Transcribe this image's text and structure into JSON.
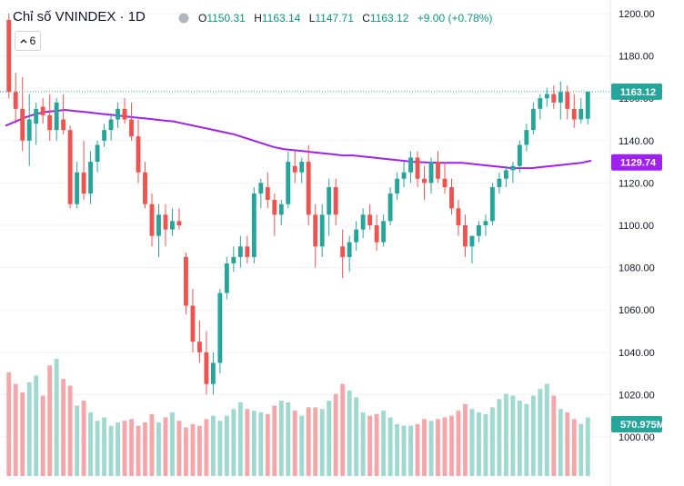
{
  "header": {
    "symbol_title": "Chỉ số VNINDEX · 1D",
    "ohlc": {
      "o_key": "O",
      "o_val": "1150.31",
      "h_key": "H",
      "h_val": "1163.14",
      "l_key": "L",
      "l_val": "1147.71",
      "c_key": "C",
      "c_val": "1163.12",
      "change": "+9.00 (+0.78%)"
    }
  },
  "indicator_toggle": {
    "count": "6",
    "icon": "chevron-up-icon"
  },
  "hide_icon": "eye-slash-icon",
  "colors": {
    "up": "#26a69a",
    "down": "#ef5350",
    "vol_up": "#9fd9cf",
    "vol_down": "#f5a6a9",
    "ma": "#a020f0",
    "price_tag": "#26a69a"
  },
  "price_tag": "1163.12",
  "ma_tag": "1129.74",
  "volume_tag": "570.975M",
  "chart_data": {
    "type": "candlestick",
    "y_ticks": [
      "1000.00",
      "1020.00",
      "1040.00",
      "1060.00",
      "1080.00",
      "1100.00",
      "1120.00",
      "1140.00",
      "1160.00",
      "1180.00",
      "1200.00"
    ],
    "ylim": [
      995,
      1202
    ],
    "ma_values": [
      1147,
      1149,
      1151,
      1152.5,
      1153.5,
      1154,
      1154.5,
      1154,
      1153.5,
      1153,
      1152.5,
      1152,
      1151.5,
      1151,
      1150.5,
      1150,
      1149.5,
      1149,
      1148,
      1147,
      1146,
      1145,
      1144,
      1143,
      1141.5,
      1140,
      1138.5,
      1137,
      1136,
      1135.5,
      1135,
      1134.5,
      1134,
      1133.5,
      1133,
      1133,
      1132.5,
      1132,
      1131.5,
      1131,
      1130.5,
      1130,
      1129.8,
      1129.6,
      1129.5,
      1129.5,
      1129.5,
      1129,
      1128.5,
      1128,
      1127.5,
      1127,
      1127,
      1127,
      1127.5,
      1128,
      1128.5,
      1129,
      1129.5,
      1130.5
    ],
    "candles": [
      [
        1197,
        1200,
        1160,
        1163
      ],
      [
        1163,
        1172,
        1148,
        1155
      ],
      [
        1155,
        1170,
        1135,
        1140
      ],
      [
        1140,
        1162,
        1128,
        1150
      ],
      [
        1148,
        1158,
        1138,
        1155
      ],
      [
        1156,
        1160,
        1148,
        1152
      ],
      [
        1152,
        1162,
        1140,
        1145
      ],
      [
        1145,
        1160,
        1140,
        1158
      ],
      [
        1150,
        1162,
        1143,
        1145
      ],
      [
        1145,
        1147,
        1108,
        1110
      ],
      [
        1110,
        1130,
        1108,
        1125
      ],
      [
        1125,
        1140,
        1112,
        1115
      ],
      [
        1115,
        1135,
        1110,
        1130
      ],
      [
        1130,
        1140,
        1125,
        1138
      ],
      [
        1140,
        1148,
        1137,
        1145
      ],
      [
        1145,
        1152,
        1140,
        1150
      ],
      [
        1150,
        1158,
        1146,
        1155
      ],
      [
        1155,
        1160,
        1148,
        1150
      ],
      [
        1150,
        1158,
        1140,
        1142
      ],
      [
        1142,
        1150,
        1120,
        1125
      ],
      [
        1125,
        1130,
        1108,
        1110
      ],
      [
        1110,
        1115,
        1090,
        1095
      ],
      [
        1095,
        1110,
        1085,
        1105
      ],
      [
        1105,
        1110,
        1090,
        1098
      ],
      [
        1098,
        1108,
        1095,
        1102
      ],
      [
        1102,
        1108,
        1098,
        1100
      ],
      [
        1085,
        1087,
        1058,
        1062
      ],
      [
        1062,
        1070,
        1040,
        1045
      ],
      [
        1045,
        1055,
        1035,
        1040
      ],
      [
        1040,
        1050,
        1020,
        1025
      ],
      [
        1025,
        1040,
        1020,
        1035
      ],
      [
        1035,
        1070,
        1030,
        1068
      ],
      [
        1068,
        1085,
        1065,
        1082
      ],
      [
        1082,
        1090,
        1078,
        1085
      ],
      [
        1085,
        1095,
        1080,
        1090
      ],
      [
        1090,
        1095,
        1082,
        1085
      ],
      [
        1085,
        1118,
        1082,
        1115
      ],
      [
        1115,
        1122,
        1108,
        1120
      ],
      [
        1118,
        1125,
        1108,
        1112
      ],
      [
        1112,
        1115,
        1095,
        1105
      ],
      [
        1105,
        1112,
        1100,
        1110
      ],
      [
        1110,
        1135,
        1108,
        1130
      ],
      [
        1128,
        1135,
        1120,
        1125
      ],
      [
        1125,
        1132,
        1120,
        1130
      ],
      [
        1130,
        1138,
        1100,
        1105
      ],
      [
        1105,
        1110,
        1080,
        1090
      ],
      [
        1090,
        1110,
        1085,
        1105
      ],
      [
        1105,
        1122,
        1095,
        1118
      ],
      [
        1118,
        1122,
        1100,
        1105
      ],
      [
        1090,
        1098,
        1075,
        1085
      ],
      [
        1085,
        1095,
        1078,
        1092
      ],
      [
        1092,
        1102,
        1088,
        1098
      ],
      [
        1098,
        1108,
        1094,
        1105
      ],
      [
        1105,
        1110,
        1098,
        1100
      ],
      [
        1100,
        1105,
        1088,
        1092
      ],
      [
        1092,
        1105,
        1090,
        1102
      ],
      [
        1102,
        1118,
        1100,
        1115
      ],
      [
        1115,
        1125,
        1112,
        1122
      ],
      [
        1122,
        1130,
        1118,
        1125
      ],
      [
        1125,
        1135,
        1120,
        1132
      ],
      [
        1132,
        1135,
        1118,
        1122
      ],
      [
        1122,
        1128,
        1112,
        1120
      ],
      [
        1120,
        1132,
        1115,
        1130
      ],
      [
        1130,
        1135,
        1120,
        1122
      ],
      [
        1122,
        1130,
        1115,
        1118
      ],
      [
        1118,
        1122,
        1105,
        1108
      ],
      [
        1108,
        1112,
        1095,
        1100
      ],
      [
        1100,
        1105,
        1085,
        1090
      ],
      [
        1090,
        1095,
        1082,
        1095
      ],
      [
        1095,
        1102,
        1092,
        1100
      ],
      [
        1100,
        1105,
        1095,
        1102
      ],
      [
        1102,
        1120,
        1100,
        1118
      ],
      [
        1118,
        1125,
        1115,
        1122
      ],
      [
        1122,
        1128,
        1118,
        1126
      ],
      [
        1126,
        1130,
        1120,
        1128
      ],
      [
        1128,
        1140,
        1125,
        1138
      ],
      [
        1138,
        1148,
        1135,
        1145
      ],
      [
        1145,
        1158,
        1143,
        1155
      ],
      [
        1155,
        1162,
        1150,
        1160
      ],
      [
        1160,
        1165,
        1156,
        1162
      ],
      [
        1162,
        1166,
        1155,
        1158
      ],
      [
        1158,
        1168,
        1150,
        1163
      ],
      [
        1163,
        1166,
        1150,
        1155
      ],
      [
        1155,
        1162,
        1146,
        1150
      ],
      [
        1150,
        1160,
        1148,
        1155
      ],
      [
        1150.31,
        1163.14,
        1147.71,
        1163.12
      ]
    ],
    "volumes": [
      62,
      55,
      50,
      56,
      60,
      48,
      66,
      70,
      58,
      54,
      42,
      45,
      38,
      33,
      35,
      30,
      32,
      33,
      34,
      30,
      32,
      37,
      32,
      35,
      38,
      33,
      29,
      31,
      30,
      34,
      36,
      33,
      36,
      40,
      44,
      40,
      39,
      38,
      37,
      42,
      45,
      44,
      39,
      36,
      41,
      41,
      40,
      45,
      49,
      55,
      51,
      47,
      38,
      36,
      37,
      39,
      35,
      31,
      30,
      30,
      31,
      34,
      33,
      34,
      35,
      36,
      39,
      43,
      40,
      38,
      37,
      41,
      46,
      49,
      48,
      45,
      43,
      48,
      52,
      55,
      48,
      40,
      38,
      34,
      31,
      35
    ]
  }
}
